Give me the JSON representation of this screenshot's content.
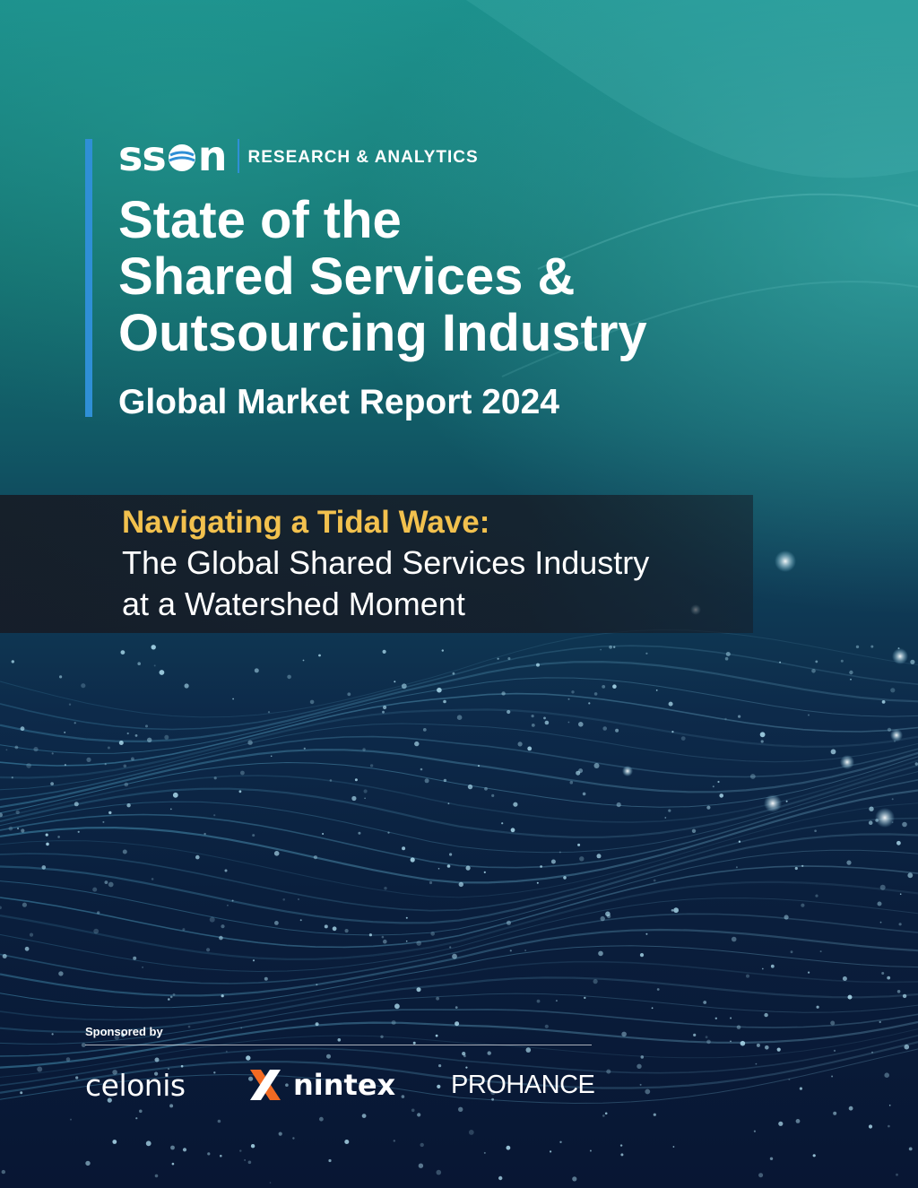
{
  "colors": {
    "accent_blue": "#2f8fd6",
    "highlight_yellow": "#f2c14e",
    "teal": "#1b8f8c",
    "navy": "#081633"
  },
  "header": {
    "brand": "ssøn",
    "division": "RESEARCH & ANALYTICS"
  },
  "title": {
    "line1": "State of the",
    "line2": "Shared Services &",
    "line3": "Outsourcing Industry"
  },
  "subtitle": "Global Market Report 2024",
  "band": {
    "highlight": "Navigating a Tidal Wave:",
    "line1": "The Global Shared Services Industry",
    "line2": "at a Watershed Moment"
  },
  "sponsors": {
    "label": "Sponsored by",
    "items": [
      {
        "name": "celonis",
        "icon": "celonis-logo"
      },
      {
        "name": "nintex",
        "icon": "nintex-x-icon"
      },
      {
        "name": "PROHANCE",
        "icon": "prohance-logo"
      }
    ]
  }
}
